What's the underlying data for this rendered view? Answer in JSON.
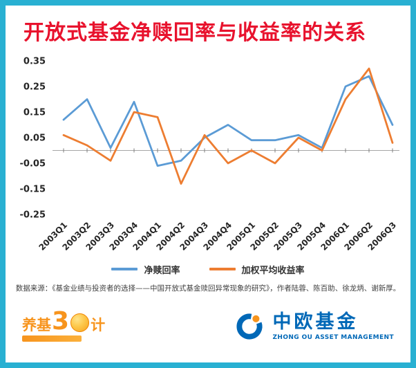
{
  "chart_data": {
    "type": "line",
    "title": "开放式基金净赎回率与收益率的关系",
    "categories": [
      "2003Q1",
      "2003Q2",
      "2003Q3",
      "2003Q4",
      "2004Q1",
      "2004Q2",
      "2004Q3",
      "2004Q4",
      "2005Q1",
      "2005Q2",
      "2005Q3",
      "2005Q4",
      "2006Q1",
      "2006Q2",
      "2006Q3"
    ],
    "series": [
      {
        "name": "净赎回率",
        "color": "#5b9bd5",
        "values": [
          0.12,
          0.2,
          0.01,
          0.19,
          -0.06,
          -0.04,
          0.05,
          0.1,
          0.04,
          0.04,
          0.06,
          0.01,
          0.25,
          0.29,
          0.1
        ]
      },
      {
        "name": "加权平均收益率",
        "color": "#ed7d31",
        "values": [
          0.06,
          0.02,
          -0.04,
          0.15,
          0.13,
          -0.13,
          0.06,
          -0.05,
          0.0,
          -0.05,
          0.05,
          0.0,
          0.2,
          0.32,
          0.03
        ]
      }
    ],
    "ylim": [
      -0.25,
      0.35
    ],
    "yticks": [
      0.35,
      0.25,
      0.15,
      0.05,
      -0.05,
      -0.15,
      -0.25
    ],
    "xlabel": "",
    "ylabel": "",
    "grid": "zero-axis-line-only",
    "legend_position": "bottom"
  },
  "source_note": "数据来源：《基金业绩与投资者的选择——中国开放式基金赎回异常现象的研究》，作者陆蓉、陈百助、徐龙炳、谢新厚。",
  "branding": {
    "left_logo": {
      "part1": "养基",
      "part2": "3",
      "part3": "计"
    },
    "right_logo": {
      "name": "中欧基金",
      "subtitle": "ZHONG OU ASSET MANAGEMENT"
    }
  },
  "colors": {
    "frame_border": "#29b0d2",
    "title_red": "#e8122d",
    "series_blue": "#5b9bd5",
    "series_orange": "#ed7d31",
    "logo_blue": "#0068b7",
    "logo_orange": "#f7941d",
    "axis_text": "#262626"
  }
}
